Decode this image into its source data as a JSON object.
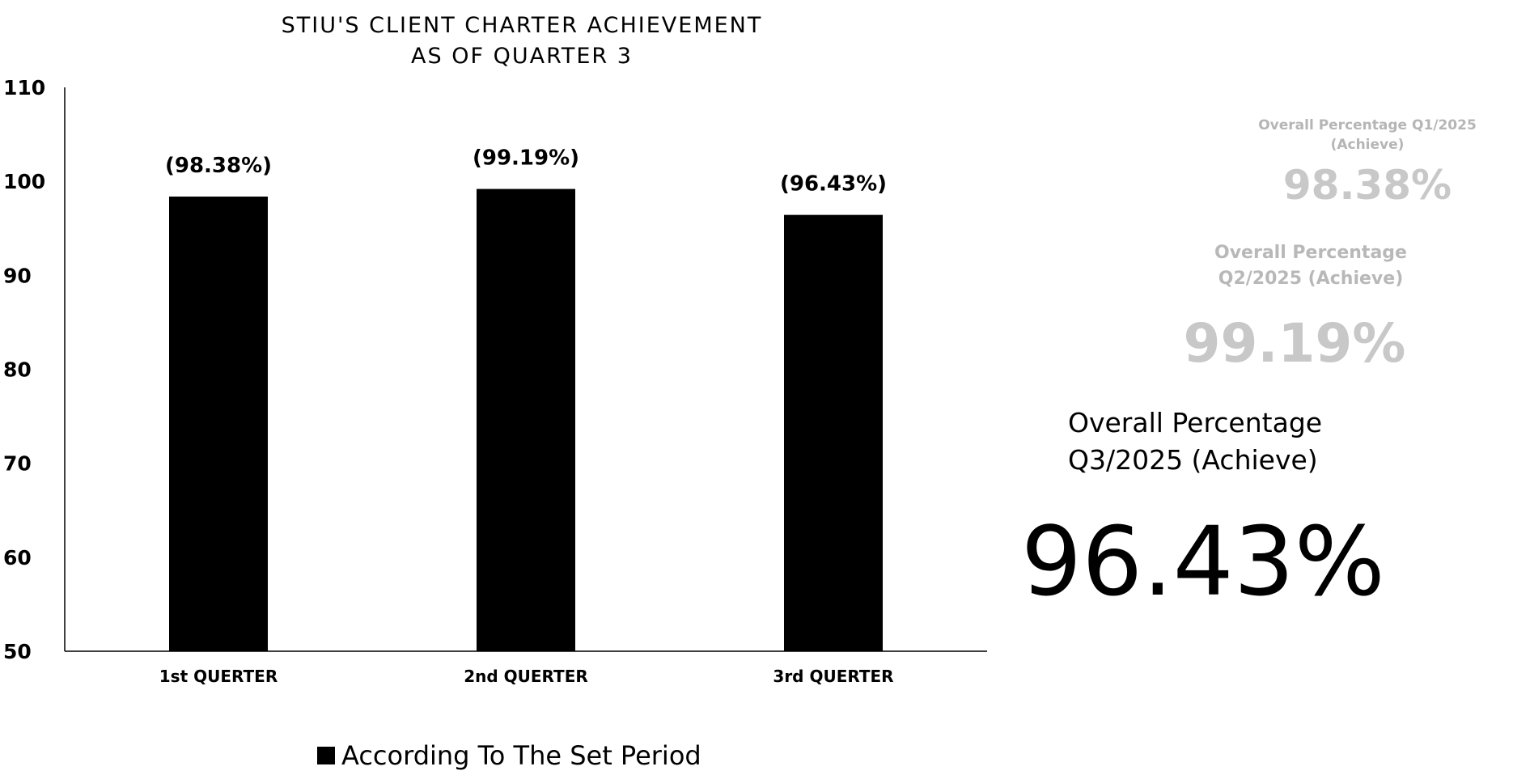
{
  "chart_data": {
    "type": "bar",
    "title_lines": [
      "STIU'S CLIENT CHARTER ACHIEVEMENT",
      "AS OF QUARTER 3"
    ],
    "categories": [
      "1st QUERTER",
      "2nd QUERTER",
      "3rd QUERTER"
    ],
    "series": [
      {
        "name": "According To The Set Period",
        "values": [
          98.38,
          99.19,
          96.43
        ],
        "data_labels": [
          "(98.38%)",
          "(99.19%)",
          "(96.43%)"
        ],
        "color": "#000000"
      }
    ],
    "ylim": [
      50,
      110
    ],
    "yticks": [
      "50",
      "60",
      "70",
      "80",
      "90",
      "100",
      "110"
    ],
    "ytick_values": [
      50,
      60,
      70,
      80,
      90,
      100,
      110
    ],
    "grid": false,
    "legend_position": "bottom"
  },
  "summary": {
    "q1": {
      "label_line1": "Overall Percentage Q1/2025",
      "label_line2": "(Achieve)",
      "value": "98.38%"
    },
    "q2": {
      "label_line1": "Overall Percentage",
      "label_line2": "Q2/2025 (Achieve)",
      "value": "99.19%"
    },
    "q3": {
      "label_line1": "Overall Percentage",
      "label_line2": "Q3/2025 (Achieve)",
      "value": "96.43%"
    }
  },
  "colors": {
    "bar": "#000000",
    "faded_text": "#c0c0c0",
    "text": "#000000"
  }
}
